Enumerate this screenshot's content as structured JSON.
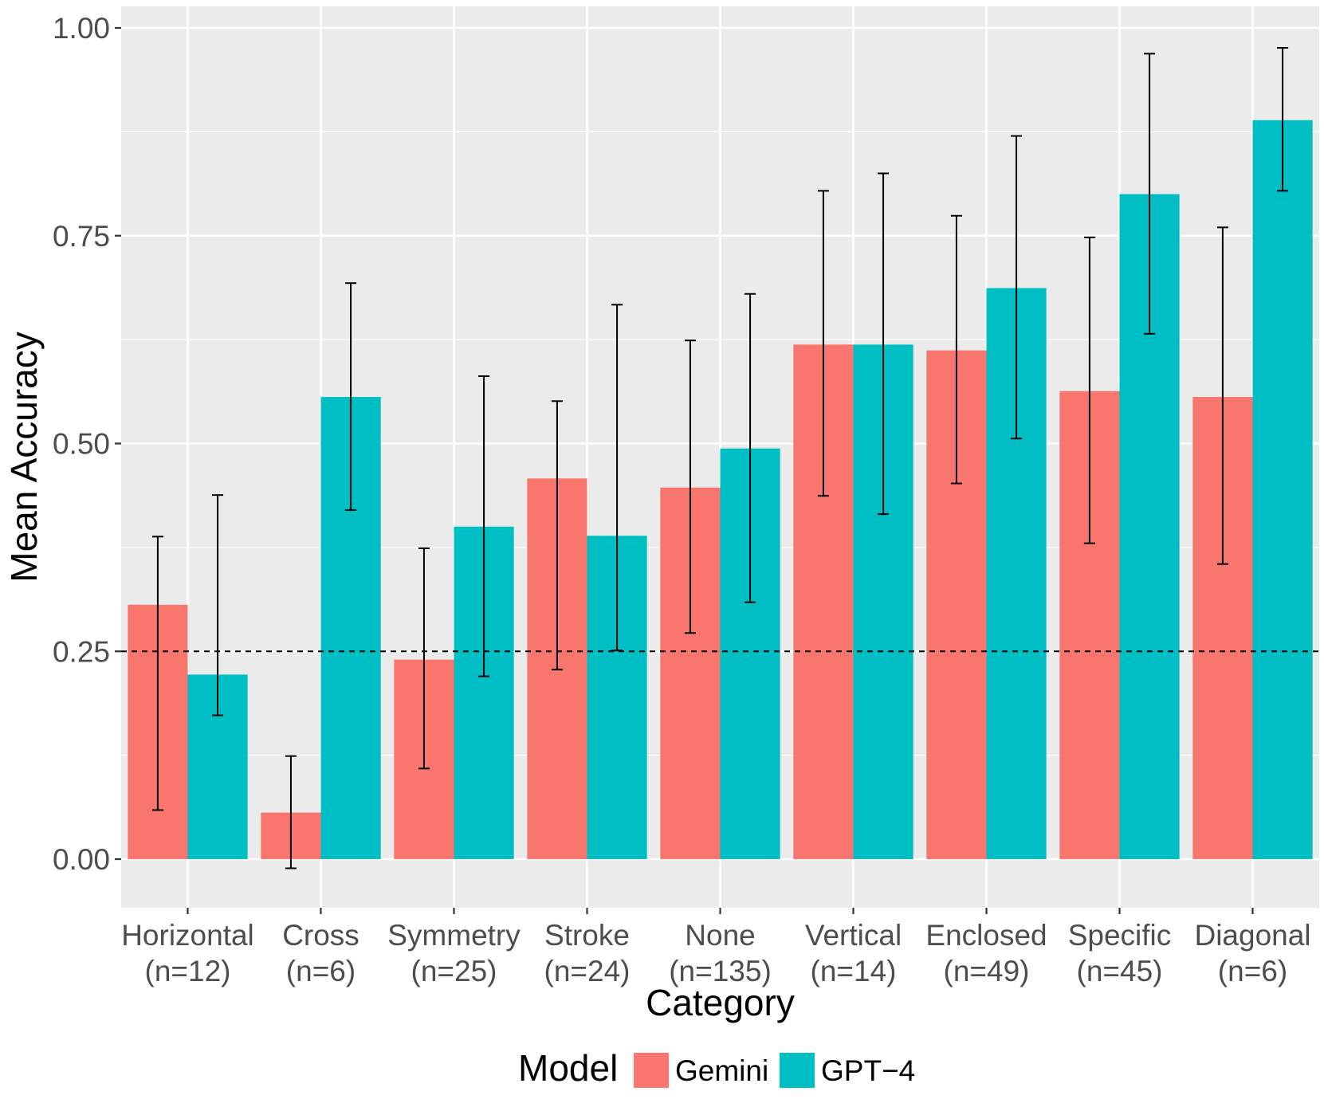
{
  "chart_data": {
    "type": "bar",
    "xlabel": "Category",
    "ylabel": "Mean Accuracy",
    "ylim": [
      -0.055,
      1.03
    ],
    "yticks": [
      0.0,
      0.25,
      0.5,
      0.75,
      1.0
    ],
    "ytick_labels": [
      "0.00",
      "0.25",
      "0.50",
      "0.75",
      "1.00"
    ],
    "grid": true,
    "reference_line": {
      "y": 0.25,
      "style": "dashed"
    },
    "categories": [
      {
        "label": "Horizontal",
        "n_label": "(n=12)"
      },
      {
        "label": "Cross",
        "n_label": "(n=6)"
      },
      {
        "label": "Symmetry",
        "n_label": "(n=25)"
      },
      {
        "label": "Stroke",
        "n_label": "(n=24)"
      },
      {
        "label": "None",
        "n_label": "(n=135)"
      },
      {
        "label": "Vertical",
        "n_label": "(n=14)"
      },
      {
        "label": "Enclosed",
        "n_label": "(n=49)"
      },
      {
        "label": "Specific",
        "n_label": "(n=45)"
      },
      {
        "label": "Diagonal",
        "n_label": "(n=6)"
      }
    ],
    "series": [
      {
        "name": "Gemini",
        "color": "#F8766D",
        "values": [
          0.306,
          0.056,
          0.24,
          0.458,
          0.447,
          0.619,
          0.612,
          0.563,
          0.556
        ],
        "error_low": [
          0.059,
          -0.011,
          0.109,
          0.228,
          0.272,
          0.437,
          0.452,
          0.38,
          0.355
        ],
        "error_high": [
          0.388,
          0.124,
          0.374,
          0.551,
          0.624,
          0.804,
          0.774,
          0.748,
          0.76
        ]
      },
      {
        "name": "GPT−4",
        "color": "#00BFC4",
        "values": [
          0.222,
          0.556,
          0.4,
          0.389,
          0.494,
          0.619,
          0.687,
          0.8,
          0.889
        ],
        "error_low": [
          0.173,
          0.42,
          0.22,
          0.251,
          0.309,
          0.415,
          0.506,
          0.632,
          0.804
        ],
        "error_high": [
          0.438,
          0.693,
          0.581,
          0.667,
          0.68,
          0.825,
          0.87,
          0.969,
          0.976
        ]
      }
    ],
    "legend": {
      "title": "Model",
      "position": "bottom"
    }
  }
}
